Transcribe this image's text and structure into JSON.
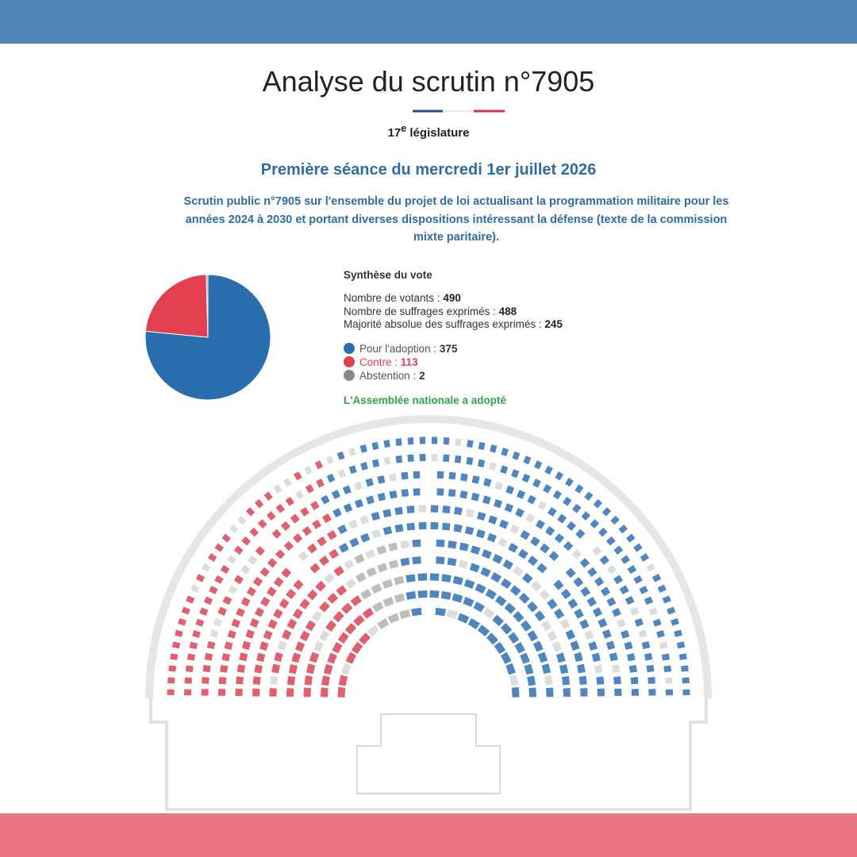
{
  "header": {
    "title": "Analyse du scrutin n°7905",
    "legislature": {
      "number": "17",
      "sup": "e",
      "text": "législature"
    }
  },
  "session": "Première séance du mercredi 1er juillet 2026",
  "description": "Scrutin public n°7905 sur l'ensemble du projet de loi actualisant la programmation militaire pour les années 2024 à 2030 et portant diverses dispositions intéressant la défense (texte de la commission mixte paritaire).",
  "summary": {
    "heading": "Synthèse du vote",
    "lines": [
      {
        "label": "Nombre de votants :",
        "value": 490
      },
      {
        "label": "Nombre de suffrages exprimés :",
        "value": 488
      },
      {
        "label": "Majorité absolue des suffrages exprimés :",
        "value": 245
      }
    ]
  },
  "chart_data": {
    "type": "pie",
    "categories": [
      "Pour l'adoption :",
      "Contre :",
      "Abstention :"
    ],
    "values": [
      375,
      113,
      2
    ],
    "colors": [
      "#2a6ead",
      "#e0404f",
      "#888888"
    ]
  },
  "result": "L'Assemblée nationale a adopté"
}
